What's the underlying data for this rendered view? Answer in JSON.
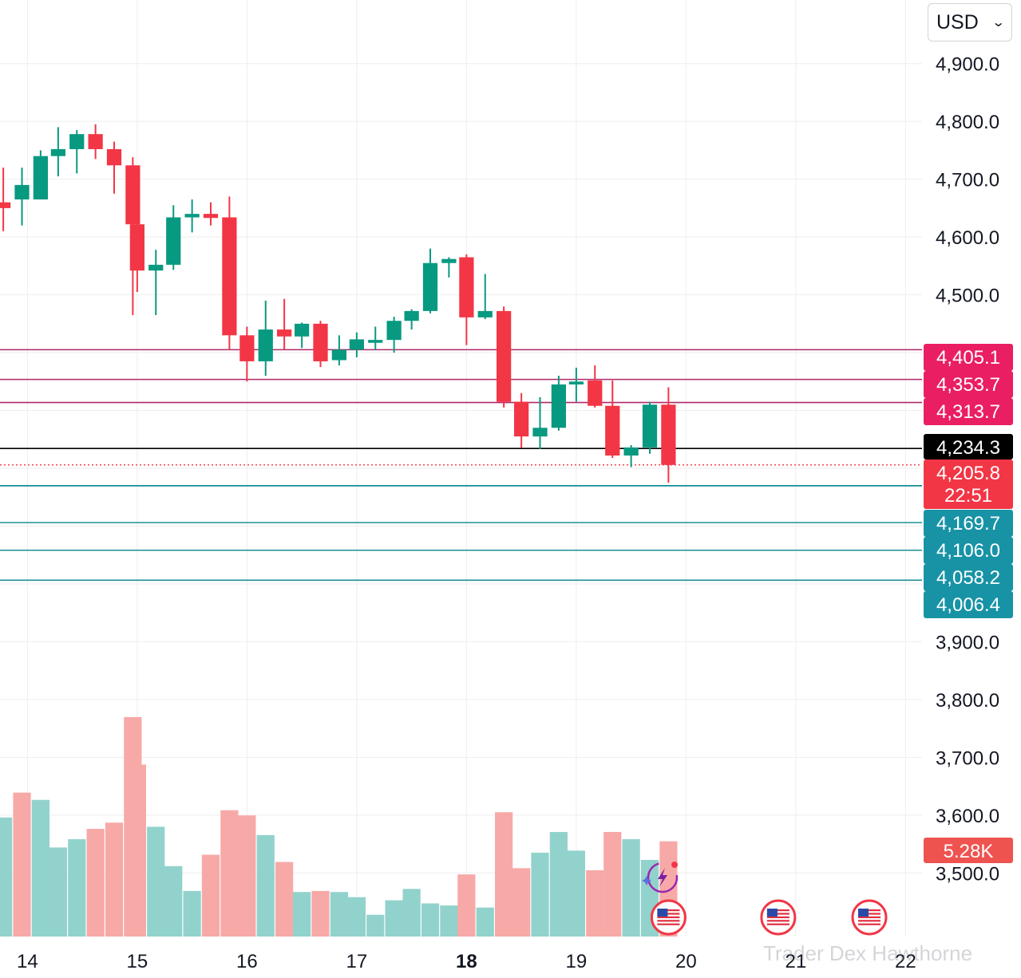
{
  "currency_select": {
    "value": "USD"
  },
  "watermark": "Trader Dex Hawthorne",
  "colors": {
    "up": "#089981",
    "down": "#f23645",
    "up_volume": "#92d2cc",
    "down_volume": "#f7a9a7",
    "resistance": "#b0286a",
    "support": "#1a8f96",
    "resistance_label_bg": "#e91e63",
    "support_label_bg": "#1893a6",
    "grid": "#eeeeee"
  },
  "chart_data": {
    "type": "candlestick",
    "price_axis": {
      "ticks": [
        "4,900.0",
        "4,800.0",
        "4,700.0",
        "4,600.0",
        "4,500.0",
        "3,900.0",
        "3,800.0",
        "3,700.0",
        "3,600.0",
        "3,500.0"
      ],
      "tick_values": [
        4900,
        4800,
        4700,
        4600,
        4500,
        3900,
        3800,
        3700,
        3600,
        3500
      ],
      "range": [
        3390,
        5010
      ]
    },
    "time_axis": {
      "labels": [
        "14",
        "15",
        "16",
        "17",
        "18",
        "19",
        "20",
        "21",
        "22"
      ],
      "bold_label": "18",
      "range": [
        13.75,
        22.15
      ]
    },
    "candles": [
      {
        "t": 13.78,
        "o": 4660,
        "h": 4720,
        "l": 4610,
        "c": 4650
      },
      {
        "t": 13.95,
        "o": 4665,
        "h": 4720,
        "l": 4620,
        "c": 4690
      },
      {
        "t": 14.12,
        "o": 4665,
        "h": 4750,
        "l": 4665,
        "c": 4740
      },
      {
        "t": 14.28,
        "o": 4740,
        "h": 4790,
        "l": 4705,
        "c": 4752
      },
      {
        "t": 14.45,
        "o": 4752,
        "h": 4785,
        "l": 4710,
        "c": 4778
      },
      {
        "t": 14.62,
        "o": 4778,
        "h": 4795,
        "l": 4735,
        "c": 4752
      },
      {
        "t": 14.79,
        "o": 4752,
        "h": 4765,
        "l": 4675,
        "c": 4724
      },
      {
        "t": 14.96,
        "o": 4724,
        "h": 4738,
        "l": 4465,
        "c": 4622
      },
      {
        "t": 15.0,
        "o": 4622,
        "h": 4625,
        "l": 4505,
        "c": 4542
      },
      {
        "t": 15.17,
        "o": 4542,
        "h": 4578,
        "l": 4465,
        "c": 4552
      },
      {
        "t": 15.33,
        "o": 4552,
        "h": 4655,
        "l": 4543,
        "c": 4634
      },
      {
        "t": 15.5,
        "o": 4634,
        "h": 4665,
        "l": 4608,
        "c": 4640
      },
      {
        "t": 15.67,
        "o": 4640,
        "h": 4660,
        "l": 4620,
        "c": 4633
      },
      {
        "t": 15.84,
        "o": 4634,
        "h": 4670,
        "l": 4405,
        "c": 4430
      },
      {
        "t": 16.0,
        "o": 4430,
        "h": 4445,
        "l": 4350,
        "c": 4385
      },
      {
        "t": 16.17,
        "o": 4385,
        "h": 4490,
        "l": 4360,
        "c": 4440
      },
      {
        "t": 16.34,
        "o": 4440,
        "h": 4493,
        "l": 4405,
        "c": 4428
      },
      {
        "t": 16.5,
        "o": 4428,
        "h": 4452,
        "l": 4408,
        "c": 4450
      },
      {
        "t": 16.67,
        "o": 4450,
        "h": 4455,
        "l": 4375,
        "c": 4385
      },
      {
        "t": 16.84,
        "o": 4387,
        "h": 4430,
        "l": 4378,
        "c": 4405
      },
      {
        "t": 17.0,
        "o": 4405,
        "h": 4435,
        "l": 4392,
        "c": 4423
      },
      {
        "t": 17.17,
        "o": 4417,
        "h": 4445,
        "l": 4405,
        "c": 4422
      },
      {
        "t": 17.34,
        "o": 4422,
        "h": 4462,
        "l": 4400,
        "c": 4455
      },
      {
        "t": 17.5,
        "o": 4455,
        "h": 4475,
        "l": 4440,
        "c": 4472
      },
      {
        "t": 17.67,
        "o": 4472,
        "h": 4580,
        "l": 4468,
        "c": 4555
      },
      {
        "t": 17.84,
        "o": 4555,
        "h": 4565,
        "l": 4530,
        "c": 4562
      },
      {
        "t": 18.0,
        "o": 4565,
        "h": 4570,
        "l": 4413,
        "c": 4461
      },
      {
        "t": 18.17,
        "o": 4461,
        "h": 4536,
        "l": 4458,
        "c": 4472
      },
      {
        "t": 18.34,
        "o": 4472,
        "h": 4480,
        "l": 4305,
        "c": 4315
      },
      {
        "t": 18.5,
        "o": 4315,
        "h": 4330,
        "l": 4235,
        "c": 4255
      },
      {
        "t": 18.67,
        "o": 4255,
        "h": 4323,
        "l": 4233,
        "c": 4270
      },
      {
        "t": 18.84,
        "o": 4270,
        "h": 4360,
        "l": 4265,
        "c": 4345
      },
      {
        "t": 19.0,
        "o": 4345,
        "h": 4374,
        "l": 4315,
        "c": 4350
      },
      {
        "t": 19.17,
        "o": 4352,
        "h": 4378,
        "l": 4305,
        "c": 4308
      },
      {
        "t": 19.33,
        "o": 4308,
        "h": 4352,
        "l": 4218,
        "c": 4222
      },
      {
        "t": 19.5,
        "o": 4222,
        "h": 4240,
        "l": 4202,
        "c": 4236
      },
      {
        "t": 19.67,
        "o": 4236,
        "h": 4315,
        "l": 4225,
        "c": 4310
      },
      {
        "t": 19.84,
        "o": 4310,
        "h": 4340,
        "l": 4175,
        "c": 4205.8
      }
    ],
    "volume_axis": {
      "range": [
        0,
        2620
      ]
    },
    "volume": [
      {
        "t": 13.78,
        "v": 1150,
        "dir": "up"
      },
      {
        "t": 13.95,
        "v": 1390,
        "dir": "down"
      },
      {
        "t": 14.12,
        "v": 1320,
        "dir": "up"
      },
      {
        "t": 14.28,
        "v": 860,
        "dir": "up"
      },
      {
        "t": 14.45,
        "v": 940,
        "dir": "up"
      },
      {
        "t": 14.62,
        "v": 1040,
        "dir": "down"
      },
      {
        "t": 14.79,
        "v": 1100,
        "dir": "down"
      },
      {
        "t": 14.96,
        "v": 2120,
        "dir": "down"
      },
      {
        "t": 15.0,
        "v": 1660,
        "dir": "down"
      },
      {
        "t": 15.17,
        "v": 1060,
        "dir": "up"
      },
      {
        "t": 15.33,
        "v": 680,
        "dir": "up"
      },
      {
        "t": 15.5,
        "v": 440,
        "dir": "up"
      },
      {
        "t": 15.67,
        "v": 790,
        "dir": "down"
      },
      {
        "t": 15.84,
        "v": 1220,
        "dir": "down"
      },
      {
        "t": 16.0,
        "v": 1170,
        "dir": "down"
      },
      {
        "t": 16.17,
        "v": 980,
        "dir": "up"
      },
      {
        "t": 16.34,
        "v": 720,
        "dir": "down"
      },
      {
        "t": 16.5,
        "v": 430,
        "dir": "up"
      },
      {
        "t": 16.67,
        "v": 440,
        "dir": "down"
      },
      {
        "t": 16.84,
        "v": 430,
        "dir": "up"
      },
      {
        "t": 17.0,
        "v": 380,
        "dir": "up"
      },
      {
        "t": 17.17,
        "v": 210,
        "dir": "up"
      },
      {
        "t": 17.34,
        "v": 350,
        "dir": "up"
      },
      {
        "t": 17.5,
        "v": 460,
        "dir": "up"
      },
      {
        "t": 17.67,
        "v": 320,
        "dir": "up"
      },
      {
        "t": 17.84,
        "v": 300,
        "dir": "up"
      },
      {
        "t": 18.0,
        "v": 600,
        "dir": "down"
      },
      {
        "t": 18.17,
        "v": 280,
        "dir": "up"
      },
      {
        "t": 18.34,
        "v": 1200,
        "dir": "down"
      },
      {
        "t": 18.5,
        "v": 660,
        "dir": "down"
      },
      {
        "t": 18.67,
        "v": 810,
        "dir": "up"
      },
      {
        "t": 18.84,
        "v": 1010,
        "dir": "up"
      },
      {
        "t": 19.0,
        "v": 830,
        "dir": "up"
      },
      {
        "t": 19.17,
        "v": 640,
        "dir": "down"
      },
      {
        "t": 19.33,
        "v": 1010,
        "dir": "down"
      },
      {
        "t": 19.5,
        "v": 940,
        "dir": "up"
      },
      {
        "t": 19.67,
        "v": 740,
        "dir": "up"
      },
      {
        "t": 19.84,
        "v": 920,
        "dir": "down"
      }
    ],
    "resistance_levels": [
      {
        "value": 4405.1,
        "label": "4,405.1"
      },
      {
        "value": 4353.7,
        "label": "4,353.7"
      },
      {
        "value": 4313.7,
        "label": "4,313.7"
      }
    ],
    "reference_line": {
      "value": 4234.3,
      "label": "4,234.3"
    },
    "last_price": {
      "value": 4205.8,
      "label": "4,205.8",
      "countdown": "22:51"
    },
    "support_levels": [
      {
        "value": 4205.8,
        "label": ""
      },
      {
        "value": 4169.7,
        "label": "4,169.7"
      },
      {
        "value": 4106.0,
        "label": "4,106.0"
      },
      {
        "value": 4058.2,
        "label": "4,058.2"
      },
      {
        "value": 4006.4,
        "label": "4,006.4"
      }
    ],
    "volume_label": "5.28K",
    "event_markers": [
      {
        "t": 19.84
      },
      {
        "t": 20.84
      },
      {
        "t": 21.67
      }
    ]
  }
}
